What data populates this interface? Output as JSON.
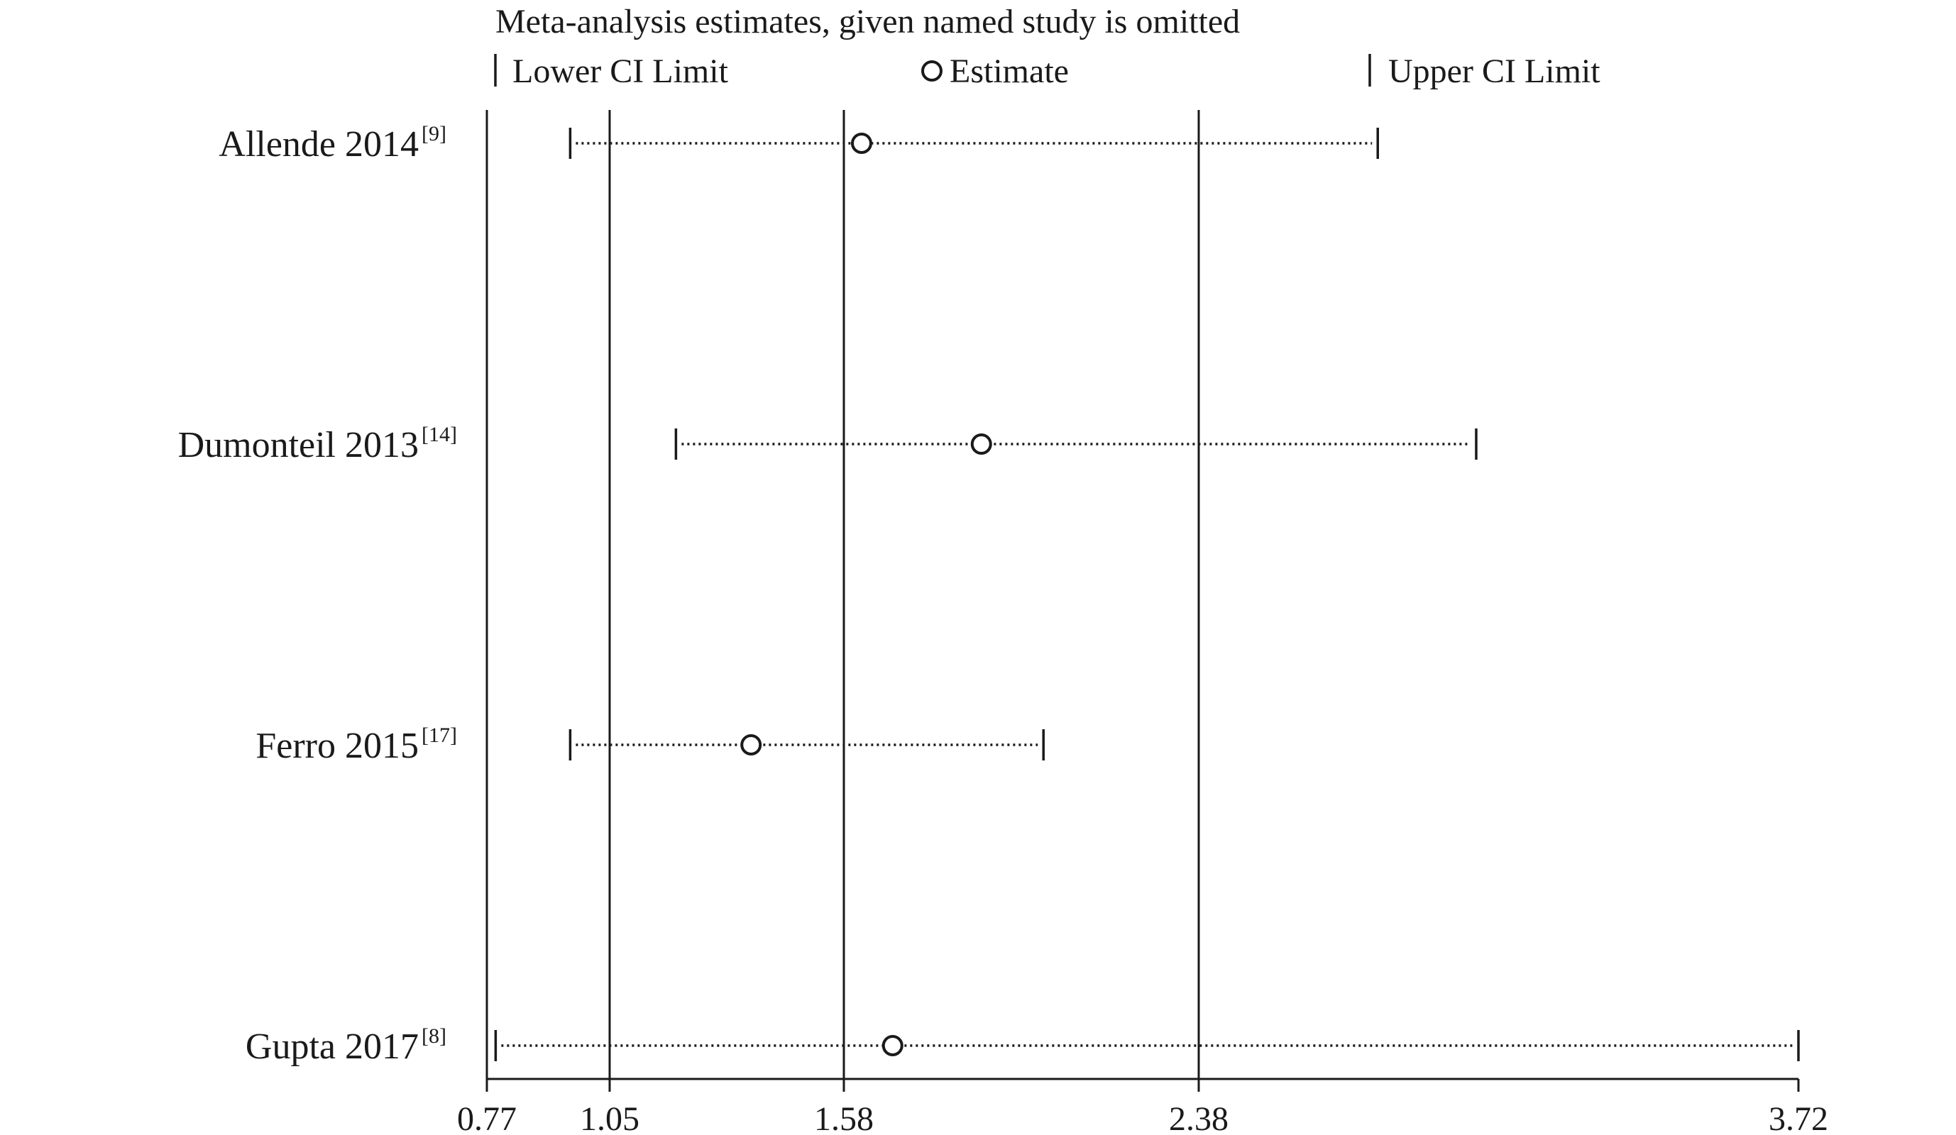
{
  "chart_data": {
    "type": "forest",
    "title": "Meta-analysis estimates, given named study is omitted",
    "legend": {
      "lower": "Lower CI Limit",
      "estimate": "Estimate",
      "upper": "Upper CI Limit"
    },
    "x_ticks": [
      "0.77",
      "1.05",
      "1.58",
      "2.38",
      "3.72"
    ],
    "xlim": [
      0.77,
      3.72
    ],
    "reference_lines": [
      0.77,
      1.05,
      1.58,
      2.38
    ],
    "studies": [
      {
        "name": "Allende 2014",
        "ref": "[9]",
        "lower": 0.96,
        "estimate": 1.62,
        "upper": 2.78
      },
      {
        "name": "Dumonteil 2013",
        "ref": "[14]",
        "lower": 1.2,
        "estimate": 1.89,
        "upper": 3.0
      },
      {
        "name": "Ferro 2015",
        "ref": "[17]",
        "lower": 0.96,
        "estimate": 1.37,
        "upper": 2.03
      },
      {
        "name": "Gupta 2017",
        "ref": "[8]",
        "lower": 0.79,
        "estimate": 1.69,
        "upper": 3.72
      }
    ]
  }
}
